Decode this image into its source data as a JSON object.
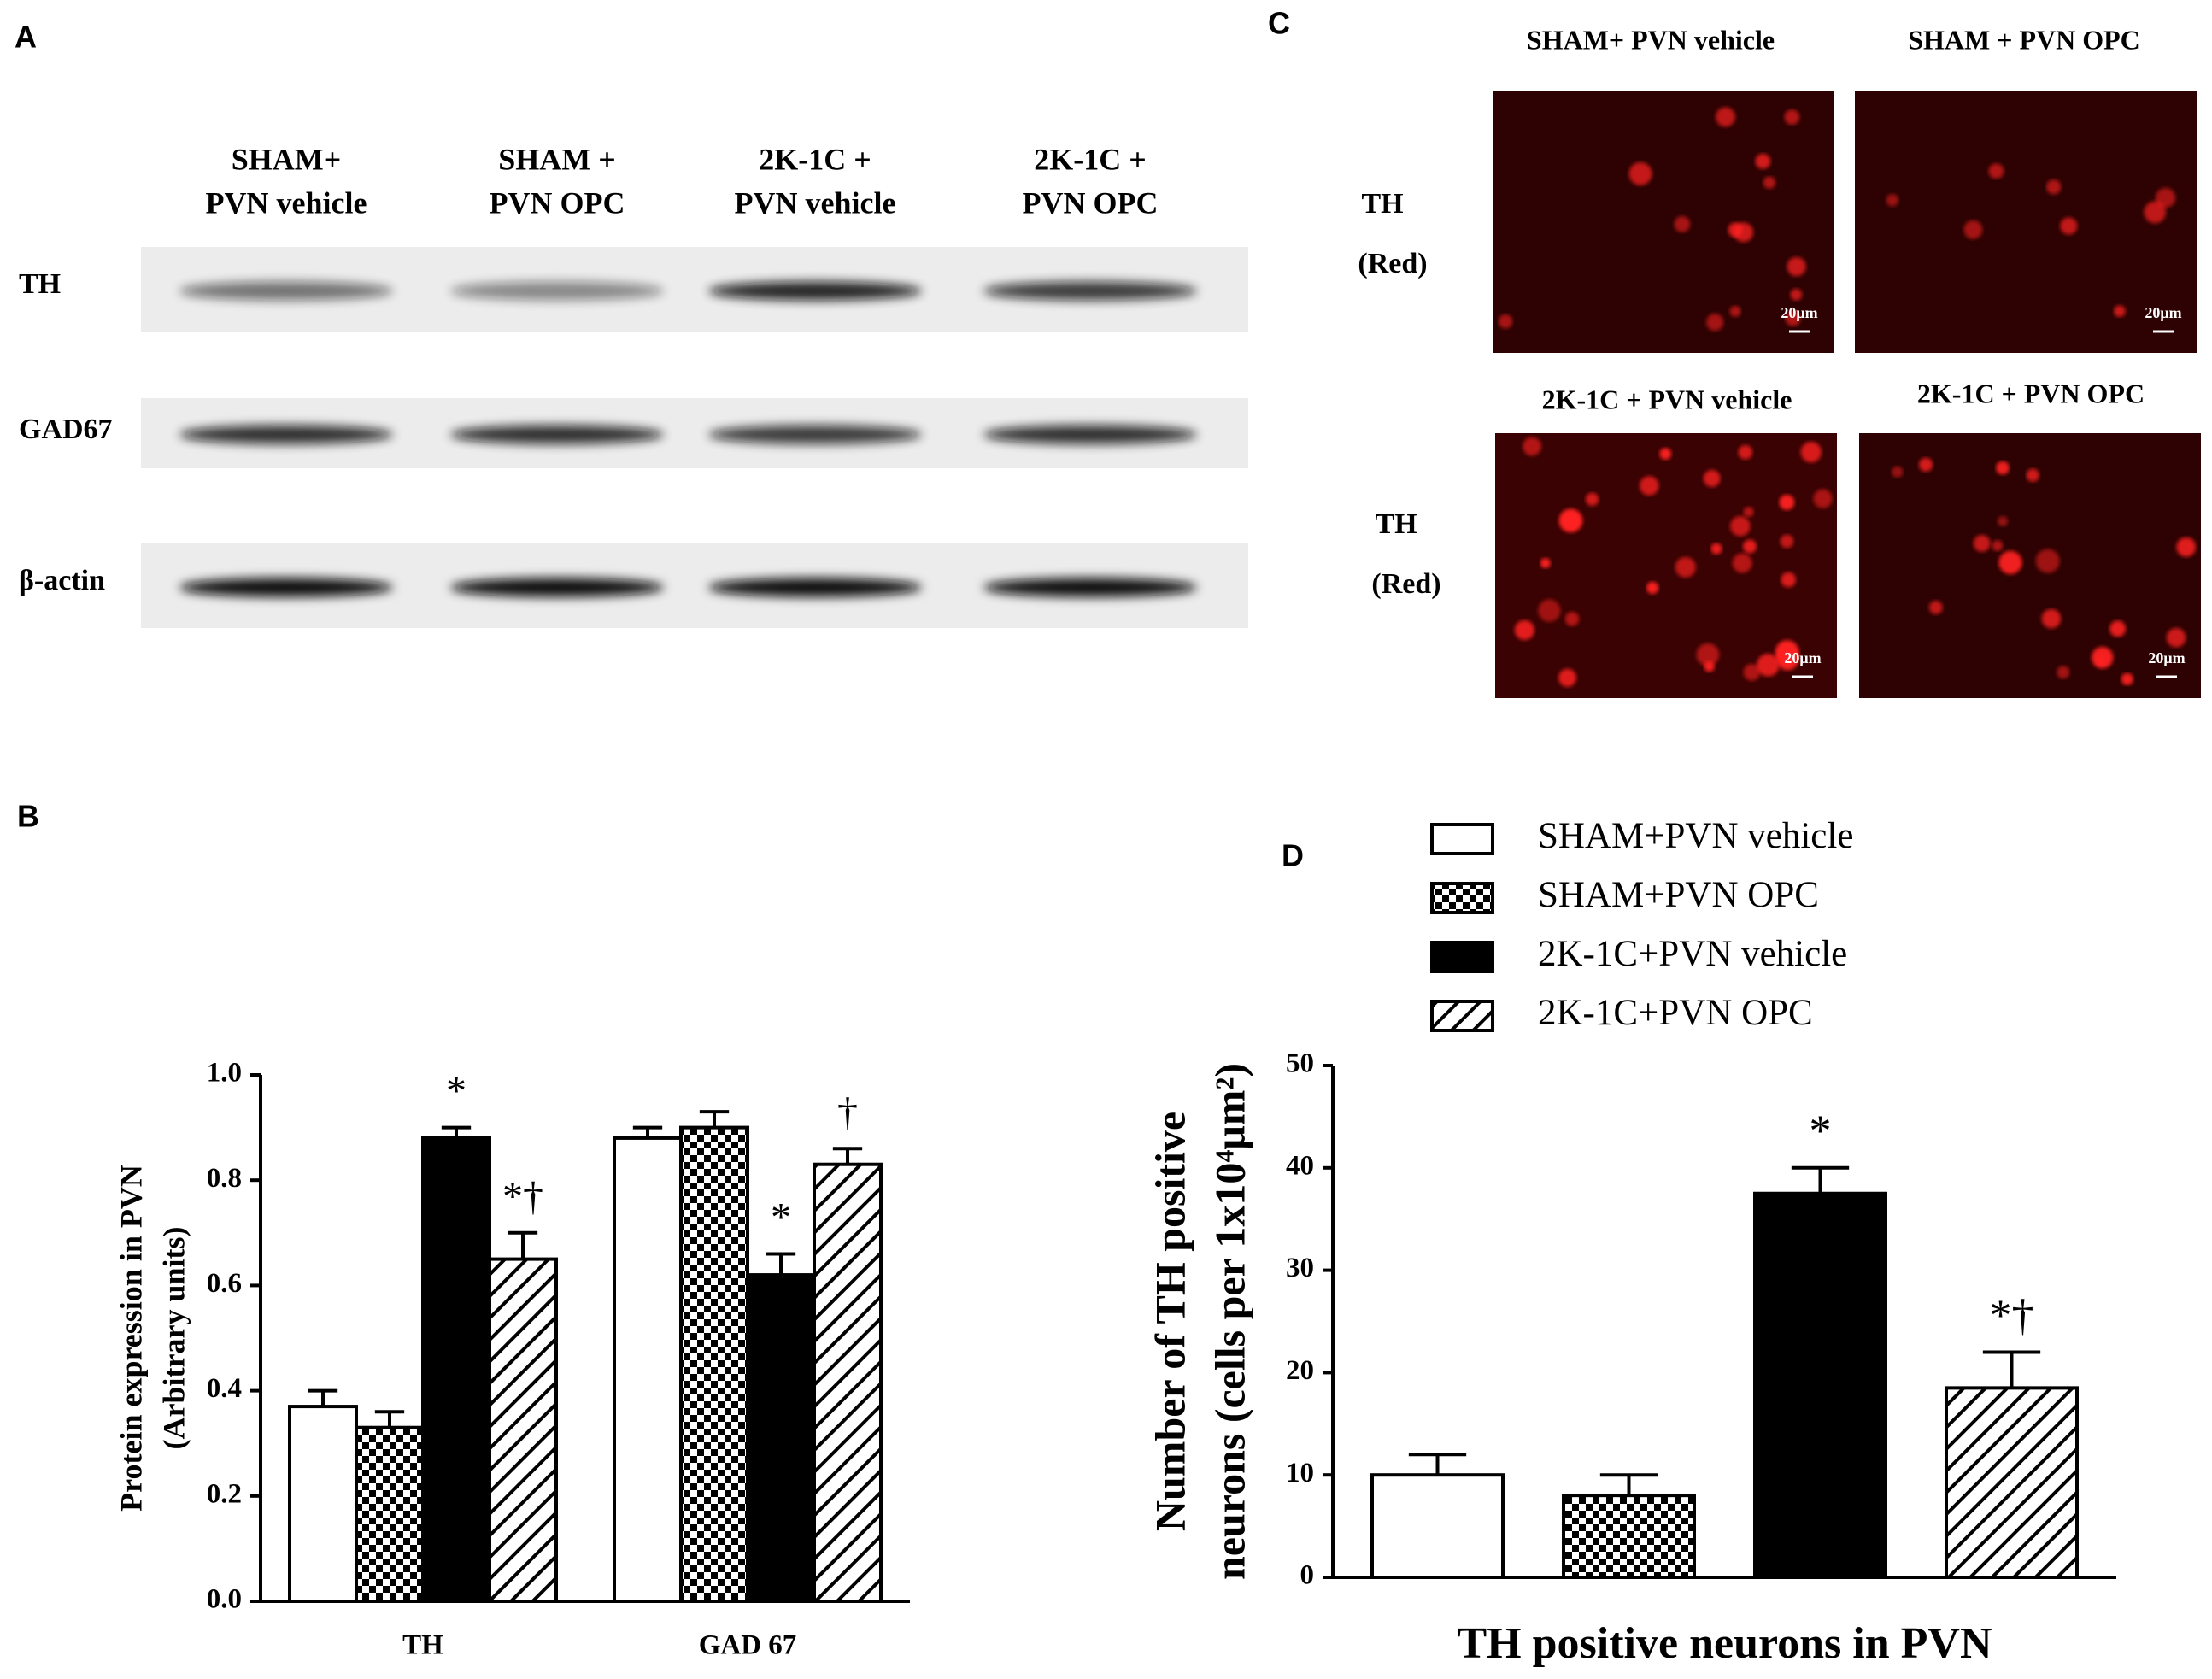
{
  "panel_labels": [
    "A",
    "B",
    "C",
    "D"
  ],
  "blot": {
    "columns": [
      [
        "SHAM+",
        "PVN vehicle"
      ],
      [
        "SHAM +",
        "PVN OPC"
      ],
      [
        "2K-1C +",
        "PVN vehicle"
      ],
      [
        "2K-1C +",
        "PVN OPC"
      ]
    ],
    "rows": [
      "TH",
      "GAD67",
      "β-actin"
    ]
  },
  "micrographs": {
    "headers": [
      "SHAM+ PVN vehicle",
      "SHAM + PVN OPC",
      "2K-1C + PVN vehicle",
      "2K-1C + PVN OPC"
    ],
    "row_label": [
      "TH",
      "(Red)"
    ],
    "scale_bar": "20μm"
  },
  "chart_data": [
    {
      "type": "bar",
      "ylabel": [
        "Protein expression in PVN",
        "(Arbitrary units)"
      ],
      "categories": [
        "TH",
        "GAD 67"
      ],
      "series": [
        {
          "pattern": "none",
          "color": "#000000",
          "values": [
            0.37,
            0.88
          ],
          "errors": [
            0.03,
            0.02
          ],
          "annotations": [
            null,
            null
          ]
        },
        {
          "pattern": "checker",
          "color": "#000000",
          "values": [
            0.33,
            0.9
          ],
          "errors": [
            0.03,
            0.03
          ],
          "annotations": [
            null,
            null
          ]
        },
        {
          "pattern": "solid",
          "color": "#000000",
          "values": [
            0.88,
            0.62
          ],
          "errors": [
            0.02,
            0.04
          ],
          "annotations": [
            "*",
            "*"
          ]
        },
        {
          "pattern": "hatch",
          "color": "#000000",
          "values": [
            0.65,
            0.83
          ],
          "errors": [
            0.05,
            0.03
          ],
          "annotations": [
            "*†",
            "†"
          ]
        }
      ],
      "ylim": [
        0,
        1.0
      ],
      "yticks": [
        {
          "value": 0,
          "label": "0.0"
        },
        {
          "value": 0.2,
          "label": "0.2"
        },
        {
          "value": 0.4,
          "label": "0.4"
        },
        {
          "value": 0.6,
          "label": "0.6"
        },
        {
          "value": 0.8,
          "label": "0.8"
        },
        {
          "value": 1.0,
          "label": "1.0"
        }
      ]
    },
    {
      "type": "bar",
      "ylabel": [
        "Number of TH positive",
        "neurons (cells per 1x10⁴μm²)"
      ],
      "xlabel": "TH positive neurons in PVN",
      "categories": [
        null
      ],
      "series": [
        {
          "name": "SHAM+PVN vehicle",
          "pattern": "none",
          "color": "#000000",
          "values": [
            10
          ],
          "errors": [
            2
          ],
          "annotations": [
            null
          ]
        },
        {
          "name": "SHAM+PVN OPC",
          "pattern": "checker",
          "color": "#000000",
          "values": [
            8
          ],
          "errors": [
            2
          ],
          "annotations": [
            null
          ]
        },
        {
          "name": "2K-1C+PVN vehicle",
          "pattern": "solid",
          "color": "#000000",
          "values": [
            37.5
          ],
          "errors": [
            2.5
          ],
          "annotations": [
            "*"
          ]
        },
        {
          "name": "2K-1C+PVN OPC",
          "pattern": "hatch",
          "color": "#000000",
          "values": [
            18.5
          ],
          "errors": [
            3.5
          ],
          "annotations": [
            "*†"
          ]
        }
      ],
      "ylim": [
        0,
        50
      ],
      "yticks": [
        0,
        10,
        20,
        30,
        40,
        50
      ]
    }
  ]
}
